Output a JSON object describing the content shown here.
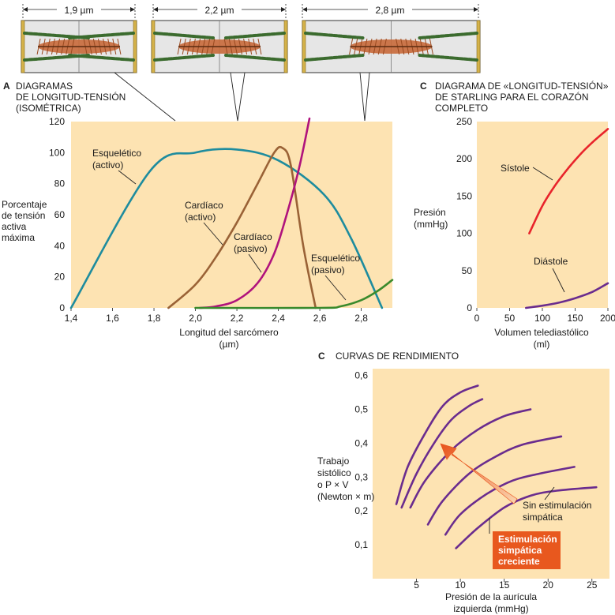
{
  "sarcomeres": [
    {
      "label": "1,9 µm"
    },
    {
      "label": "2,2 µm"
    },
    {
      "label": "2,8 µm"
    }
  ],
  "colors": {
    "plot_bg": "#fde3b2",
    "skeletal_active": "#1e8c9e",
    "cardiac_active": "#9a6236",
    "cardiac_passive": "#b0137c",
    "skeletal_passive": "#3a8a2c",
    "systole": "#e8242b",
    "diastole": "#6a2c8e",
    "performance": "#6a2c8e",
    "stim_box": "#e8581e",
    "thick_filament": "#c8693a",
    "thin_filament": "#3b6b2e",
    "z_disc": "#d4b24a"
  },
  "chart_data": [
    {
      "id": "A",
      "type": "line",
      "letter": "A",
      "title_lines": [
        "DIAGRAMAS",
        "DE LONGITUD-TENSIÓN",
        "(ISOMÉTRICA)"
      ],
      "ylabel_lines": [
        "Porcentaje",
        "de tensión",
        "activa",
        "máxima"
      ],
      "xlabel_lines": [
        "Longitud del sarcómero",
        "(µm)"
      ],
      "xlim": [
        1.4,
        2.95
      ],
      "ylim": [
        0,
        120
      ],
      "x_ticks": [
        "1,4",
        "1,6",
        "1,8",
        "2,0",
        "2,2",
        "2,4",
        "2,6",
        "2,8"
      ],
      "x_tick_values": [
        1.4,
        1.6,
        1.8,
        2.0,
        2.2,
        2.4,
        2.6,
        2.8
      ],
      "y_ticks": [
        "0",
        "20",
        "40",
        "60",
        "80",
        "100",
        "120"
      ],
      "y_tick_values": [
        0,
        20,
        40,
        60,
        80,
        100,
        120
      ],
      "grid": false,
      "series": [
        {
          "name": "Esquelético (activo)",
          "label_lines": [
            "Esquelético",
            "(activo)"
          ],
          "color": "skeletal_active",
          "x": [
            1.4,
            1.78,
            2.0,
            2.2,
            2.4,
            2.62,
            2.75,
            2.9
          ],
          "y": [
            0,
            88,
            100,
            102,
            95,
            73,
            45,
            0
          ]
        },
        {
          "name": "Cardíaco (activo)",
          "label_lines": [
            "Cardíaco",
            "(activo)"
          ],
          "color": "cardiac_active",
          "x": [
            1.87,
            2.0,
            2.1,
            2.2,
            2.3,
            2.38,
            2.42,
            2.46,
            2.52,
            2.58
          ],
          "y": [
            0,
            15,
            33,
            55,
            80,
            100,
            103,
            92,
            40,
            0
          ]
        },
        {
          "name": "Cardíaco (pasivo)",
          "label_lines": [
            "Cardíaco",
            "(pasivo)"
          ],
          "color": "cardiac_passive",
          "x": [
            2.02,
            2.1,
            2.2,
            2.3,
            2.38,
            2.44,
            2.5,
            2.55
          ],
          "y": [
            0,
            1,
            5,
            16,
            35,
            60,
            90,
            122
          ]
        },
        {
          "name": "Esquelético (pasivo)",
          "label_lines": [
            "Esquelético",
            "(pasivo)"
          ],
          "color": "skeletal_passive",
          "x": [
            2.0,
            2.6,
            2.7,
            2.8,
            2.88,
            2.95
          ],
          "y": [
            0,
            0,
            1,
            5,
            11,
            18
          ]
        }
      ]
    },
    {
      "id": "C1",
      "type": "line",
      "letter": "C",
      "title_lines": [
        "DIAGRAMA DE «LONGITUD-TENSIÓN»",
        "DE STARLING PARA EL CORAZÓN",
        "COMPLETO"
      ],
      "ylabel_lines": [
        "Presión",
        "(mmHg)"
      ],
      "xlabel_lines": [
        "Volumen telediastólico",
        "(ml)"
      ],
      "xlim": [
        0,
        200
      ],
      "ylim": [
        0,
        250
      ],
      "x_ticks": [
        "0",
        "50",
        "100",
        "150",
        "200"
      ],
      "x_tick_values": [
        0,
        50,
        100,
        150,
        200
      ],
      "y_ticks": [
        "0",
        "50",
        "100",
        "150",
        "200",
        "250"
      ],
      "y_tick_values": [
        0,
        50,
        100,
        150,
        200,
        250
      ],
      "grid": false,
      "series": [
        {
          "name": "Sístole",
          "label_lines": [
            "Sístole"
          ],
          "color": "systole",
          "x": [
            80,
            100,
            120,
            140,
            160,
            180,
            200
          ],
          "y": [
            100,
            137,
            165,
            188,
            208,
            225,
            240
          ]
        },
        {
          "name": "Diástole",
          "label_lines": [
            "Diástole"
          ],
          "color": "diastole",
          "x": [
            75,
            100,
            125,
            150,
            175,
            200
          ],
          "y": [
            0,
            3,
            7,
            13,
            21,
            33
          ]
        }
      ]
    },
    {
      "id": "C2",
      "type": "line",
      "letter": "C",
      "title_lines": [
        "CURVAS DE RENDIMIENTO"
      ],
      "ylabel_lines": [
        "Trabajo",
        "sistólico",
        "o P × V",
        "(Newton × m)"
      ],
      "xlabel_lines": [
        "Presión de la aurícula",
        "izquierda (mmHg)"
      ],
      "xlim": [
        0,
        27
      ],
      "ylim": [
        0,
        0.62
      ],
      "x_ticks": [
        "5",
        "10",
        "15",
        "20",
        "25"
      ],
      "x_tick_values": [
        5,
        10,
        15,
        20,
        25
      ],
      "y_ticks": [
        "0,1",
        "0,2",
        "0,3",
        "0,4",
        "0,5",
        "0,6"
      ],
      "y_tick_values": [
        0.1,
        0.2,
        0.3,
        0.4,
        0.5,
        0.6
      ],
      "grid": false,
      "series": [
        {
          "x": [
            2.7,
            4,
            6,
            8,
            10,
            12
          ],
          "y": [
            0.22,
            0.33,
            0.43,
            0.51,
            0.55,
            0.57
          ]
        },
        {
          "x": [
            3.3,
            5,
            7,
            9,
            11,
            12.5
          ],
          "y": [
            0.21,
            0.31,
            0.4,
            0.47,
            0.51,
            0.53
          ]
        },
        {
          "x": [
            4.3,
            6,
            9,
            12,
            15,
            18
          ],
          "y": [
            0.21,
            0.29,
            0.38,
            0.44,
            0.48,
            0.5
          ]
        },
        {
          "x": [
            6.3,
            8,
            11,
            14,
            17,
            21.5
          ],
          "y": [
            0.16,
            0.23,
            0.31,
            0.36,
            0.395,
            0.42
          ]
        },
        {
          "x": [
            8.3,
            10,
            13,
            16,
            19,
            23
          ],
          "y": [
            0.13,
            0.19,
            0.25,
            0.29,
            0.31,
            0.33
          ]
        },
        {
          "x": [
            9.5,
            12,
            15,
            18,
            21,
            25.5
          ],
          "y": [
            0.09,
            0.15,
            0.21,
            0.245,
            0.26,
            0.27
          ]
        }
      ],
      "annotations": {
        "no_stim_lines": [
          "Sin estimulación",
          "simpática"
        ],
        "stim_lines": [
          "Estimulación",
          "simpática",
          "creciente"
        ]
      }
    }
  ]
}
